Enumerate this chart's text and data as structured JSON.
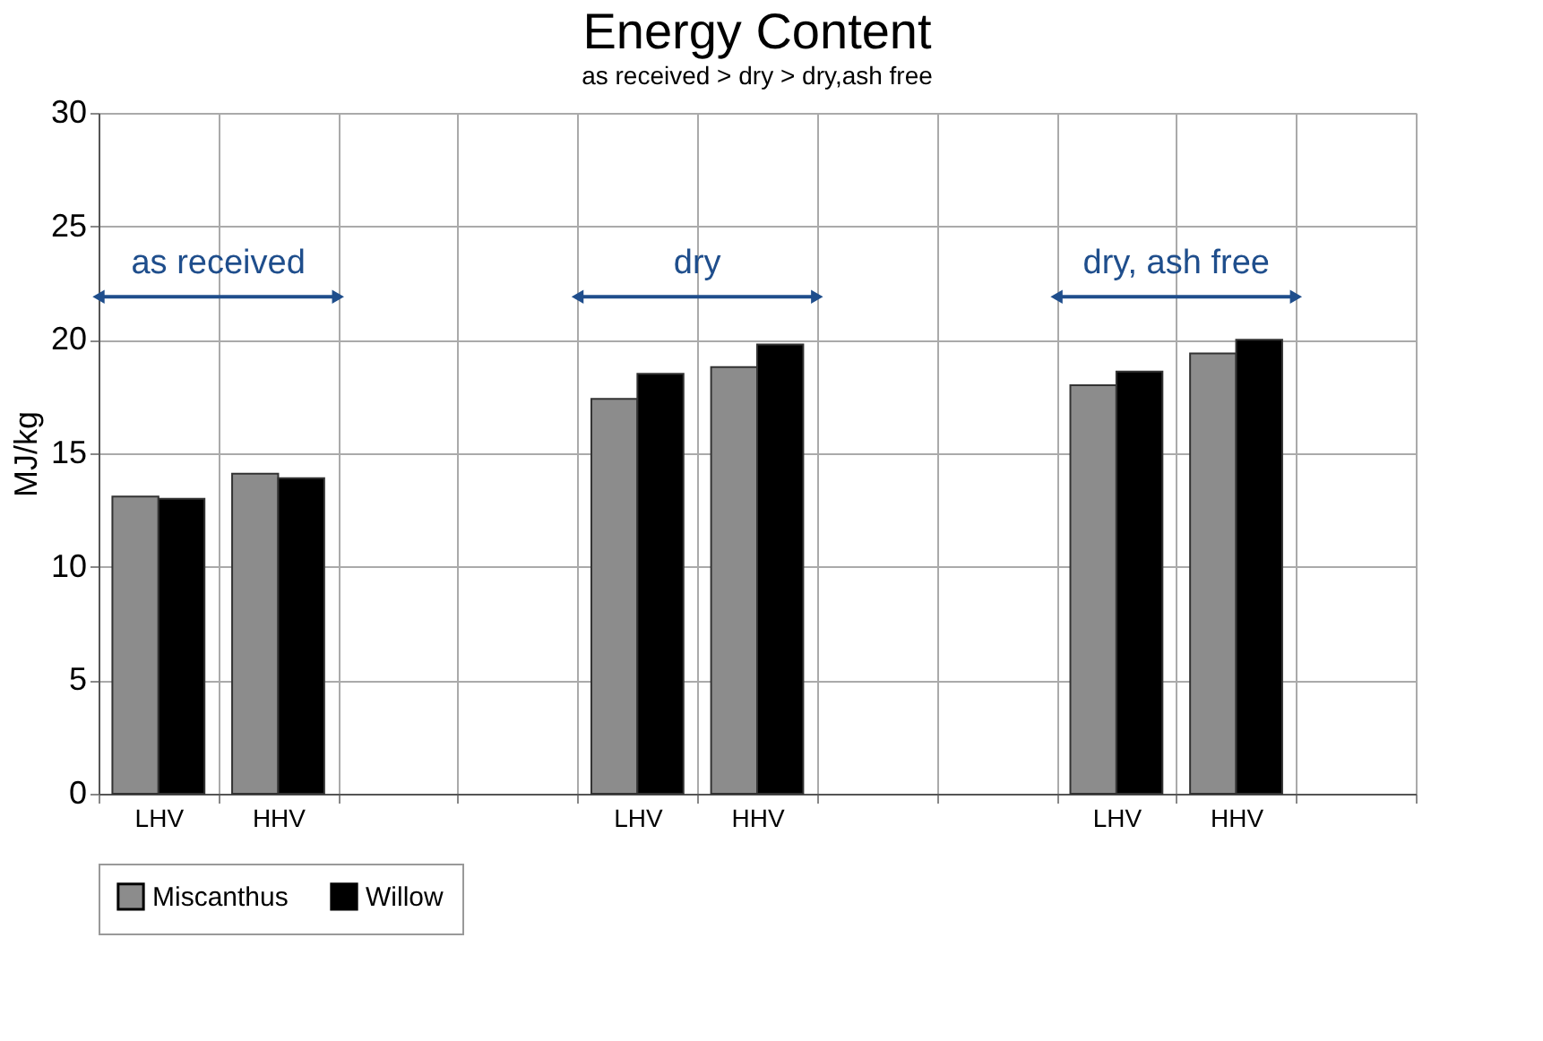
{
  "chart_data": {
    "type": "bar",
    "title": "Energy Content",
    "subtitle": "as received   >  dry > dry,ash free",
    "ylabel": "MJ/kg",
    "categories": [
      "LHV",
      "HHV",
      null,
      null,
      "LHV",
      "HHV",
      null,
      null,
      "LHV",
      "HHV",
      null
    ],
    "series": [
      {
        "name": "Miscanthus",
        "color": "#8c8c8c",
        "values": [
          13.1,
          14.1,
          null,
          null,
          17.4,
          18.8,
          null,
          null,
          18.0,
          19.4,
          null
        ]
      },
      {
        "name": "Willow",
        "color": "#000000",
        "values": [
          13.0,
          13.9,
          null,
          null,
          18.5,
          19.8,
          null,
          null,
          18.6,
          20.0,
          null
        ]
      }
    ],
    "ylim": [
      0,
      30
    ],
    "yticks": [
      0,
      5,
      10,
      15,
      20,
      25,
      30
    ],
    "grid": true,
    "legend": "bottom",
    "annotations": [
      "as received",
      "dry",
      "dry, ash free"
    ]
  }
}
